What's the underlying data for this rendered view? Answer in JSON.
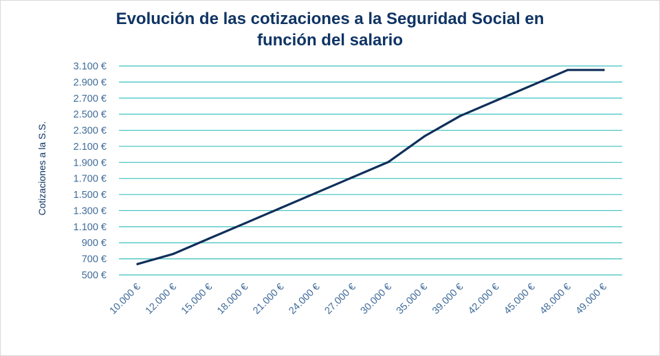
{
  "chart_data": {
    "type": "line",
    "title_line1": "Evolución de las cotizaciones a la Seguridad Social en",
    "title_line2": "función del salario",
    "ylabel": "Cotizaciones a la S.S.",
    "xlabel": "",
    "y_ticks": [
      {
        "value": 500,
        "label": "500 €"
      },
      {
        "value": 700,
        "label": "700 €"
      },
      {
        "value": 900,
        "label": "900 €"
      },
      {
        "value": 1100,
        "label": "1.100 €"
      },
      {
        "value": 1300,
        "label": "1.300 €"
      },
      {
        "value": 1500,
        "label": "1.500 €"
      },
      {
        "value": 1700,
        "label": "1.700 €"
      },
      {
        "value": 1900,
        "label": "1.900 €"
      },
      {
        "value": 2100,
        "label": "2.100 €"
      },
      {
        "value": 2300,
        "label": "2.300 €"
      },
      {
        "value": 2500,
        "label": "2.500 €"
      },
      {
        "value": 2700,
        "label": "2.700 €"
      },
      {
        "value": 2900,
        "label": "2.900 €"
      },
      {
        "value": 3100,
        "label": "3.100 €"
      }
    ],
    "ylim": [
      500,
      3100
    ],
    "categories": [
      "10.000 €",
      "12.000 €",
      "15.000 €",
      "18.000 €",
      "21.000 €",
      "24.000 €",
      "27.000 €",
      "30.000 €",
      "35.000 €",
      "39.000 €",
      "42.000 €",
      "45.000 €",
      "48.000 €",
      "49.000 €"
    ],
    "series": [
      {
        "values": [
          635,
          762,
          953,
          1143,
          1334,
          1525,
          1715,
          1906,
          2224,
          2478,
          2669,
          2859,
          3050,
          3050
        ]
      }
    ],
    "grid": true,
    "colors": {
      "line": "#0f2f5a",
      "grid": "#3cc0c0",
      "title": "#0f3464",
      "ticks": "#3f6b9a"
    }
  }
}
